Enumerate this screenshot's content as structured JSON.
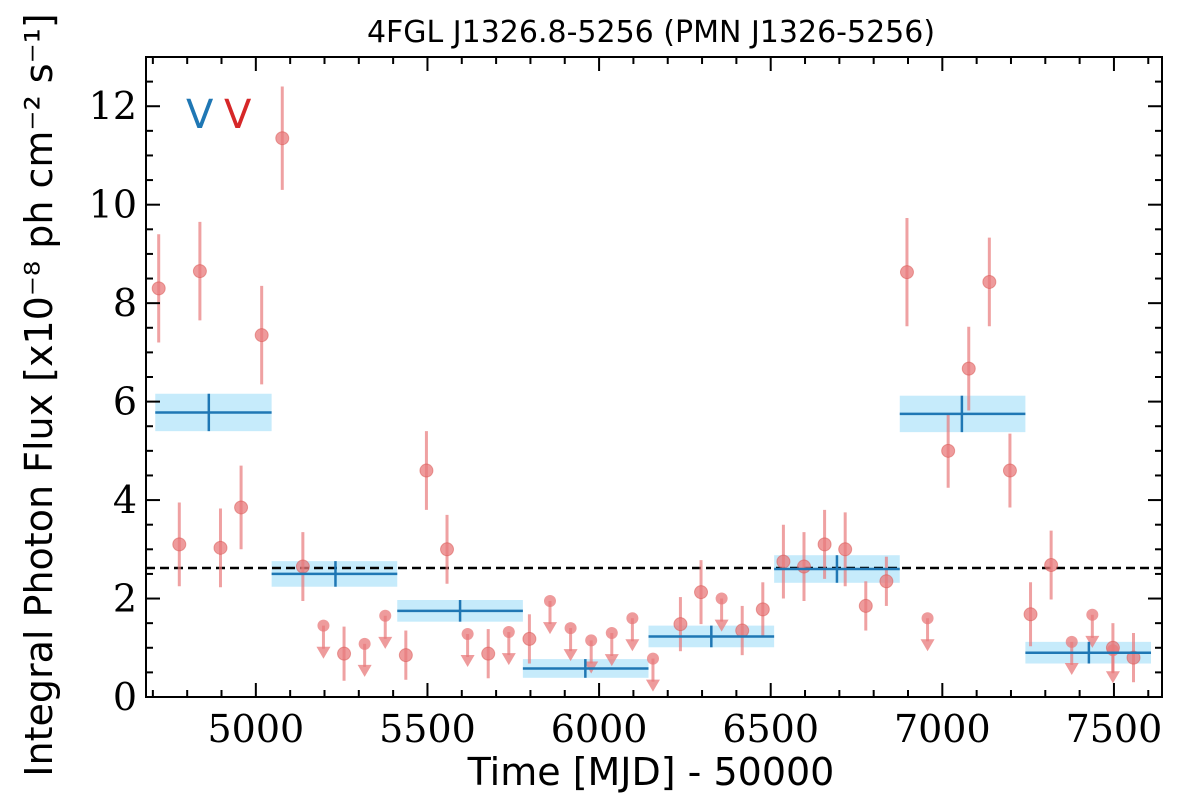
{
  "chart_data": {
    "type": "scatter",
    "title": "4FGL J1326.8-5256 (PMN J1326-5256)",
    "xlabel": "Time [MJD] - 50000",
    "ylabel": "Integral Photon Flux [x10⁻⁸ ph cm⁻² s⁻¹]",
    "xlim": [
      4680,
      7640
    ],
    "ylim": [
      0,
      13
    ],
    "xticks": [
      "5000",
      "5500",
      "6000",
      "6500",
      "7000",
      "7500"
    ],
    "yticks": [
      "0",
      "2",
      "4",
      "6",
      "8",
      "10",
      "12"
    ],
    "xtick_values": [
      5000,
      5500,
      6000,
      6500,
      7000,
      7500
    ],
    "ytick_values": [
      0,
      2,
      4,
      6,
      8,
      10,
      12
    ],
    "mean_flux": 2.62,
    "markers": [
      {
        "label": "V",
        "color": "#1f77b4"
      },
      {
        "label": "V",
        "color": "#d62728"
      }
    ],
    "detections": [
      {
        "x": 4717,
        "y": 8.3,
        "err": 1.1
      },
      {
        "x": 4777,
        "y": 3.1,
        "err": 0.85
      },
      {
        "x": 4837,
        "y": 8.65,
        "err": 1.0
      },
      {
        "x": 4897,
        "y": 3.03,
        "err": 0.8
      },
      {
        "x": 4957,
        "y": 3.85,
        "err": 0.85
      },
      {
        "x": 5017,
        "y": 7.35,
        "err": 1.0
      },
      {
        "x": 5077,
        "y": 11.35,
        "err": 1.05
      },
      {
        "x": 5137,
        "y": 2.65,
        "err": 0.7
      },
      {
        "x": 5257,
        "y": 0.88,
        "err": 0.55
      },
      {
        "x": 5437,
        "y": 0.85,
        "err": 0.5
      },
      {
        "x": 5497,
        "y": 4.6,
        "err": 0.8
      },
      {
        "x": 5557,
        "y": 3.0,
        "err": 0.7
      },
      {
        "x": 5677,
        "y": 0.88,
        "err": 0.5
      },
      {
        "x": 5797,
        "y": 1.18,
        "err": 0.5
      },
      {
        "x": 6237,
        "y": 1.48,
        "err": 0.55
      },
      {
        "x": 6297,
        "y": 2.13,
        "err": 0.65
      },
      {
        "x": 6417,
        "y": 1.35,
        "err": 0.5
      },
      {
        "x": 6477,
        "y": 1.78,
        "err": 0.55
      },
      {
        "x": 6537,
        "y": 2.75,
        "err": 0.75
      },
      {
        "x": 6597,
        "y": 2.65,
        "err": 0.7
      },
      {
        "x": 6657,
        "y": 3.1,
        "err": 0.7
      },
      {
        "x": 6717,
        "y": 3.0,
        "err": 0.75
      },
      {
        "x": 6777,
        "y": 1.85,
        "err": 0.5
      },
      {
        "x": 6837,
        "y": 2.35,
        "err": 0.5
      },
      {
        "x": 6897,
        "y": 8.63,
        "err": 1.1
      },
      {
        "x": 7017,
        "y": 5.0,
        "err": 0.75
      },
      {
        "x": 7077,
        "y": 6.67,
        "err": 0.85
      },
      {
        "x": 7137,
        "y": 8.43,
        "err": 0.9
      },
      {
        "x": 7197,
        "y": 4.6,
        "err": 0.75
      },
      {
        "x": 7257,
        "y": 1.68,
        "err": 0.65
      },
      {
        "x": 7317,
        "y": 2.68,
        "err": 0.7
      },
      {
        "x": 7497,
        "y": 1.0,
        "err": 0.5
      },
      {
        "x": 7557,
        "y": 0.8,
        "err": 0.5
      }
    ],
    "upper_limits": [
      {
        "x": 5197,
        "y": 1.45
      },
      {
        "x": 5317,
        "y": 1.08
      },
      {
        "x": 5377,
        "y": 1.65
      },
      {
        "x": 5617,
        "y": 1.28
      },
      {
        "x": 5737,
        "y": 1.32
      },
      {
        "x": 5857,
        "y": 1.95
      },
      {
        "x": 5917,
        "y": 1.4
      },
      {
        "x": 5977,
        "y": 1.15
      },
      {
        "x": 6037,
        "y": 1.3
      },
      {
        "x": 6097,
        "y": 1.6
      },
      {
        "x": 6157,
        "y": 0.78
      },
      {
        "x": 6357,
        "y": 2.0
      },
      {
        "x": 6957,
        "y": 1.6
      },
      {
        "x": 7377,
        "y": 1.12
      },
      {
        "x": 7437,
        "y": 1.67
      },
      {
        "x": 7497,
        "y": 0.95
      }
    ],
    "bins": [
      {
        "x0": 4707,
        "x1": 5046,
        "xc": 4863,
        "y": 5.78,
        "err": 0.38
      },
      {
        "x0": 5046,
        "x1": 5412,
        "xc": 5232,
        "y": 2.5,
        "err": 0.26
      },
      {
        "x0": 5412,
        "x1": 5778,
        "xc": 5595,
        "y": 1.75,
        "err": 0.22
      },
      {
        "x0": 5778,
        "x1": 6144,
        "xc": 5960,
        "y": 0.58,
        "err": 0.19
      },
      {
        "x0": 6144,
        "x1": 6510,
        "xc": 6327,
        "y": 1.23,
        "err": 0.22
      },
      {
        "x0": 6510,
        "x1": 6876,
        "xc": 6693,
        "y": 2.6,
        "err": 0.28
      },
      {
        "x0": 6876,
        "x1": 7242,
        "xc": 7057,
        "y": 5.75,
        "err": 0.37
      },
      {
        "x0": 7242,
        "x1": 7608,
        "xc": 7427,
        "y": 0.9,
        "err": 0.22
      }
    ],
    "colors": {
      "detection": "#e8797b",
      "bin_line": "#1f77b4",
      "bin_band": "#c6ebfb",
      "mean_line": "#000000"
    },
    "grid": false
  }
}
